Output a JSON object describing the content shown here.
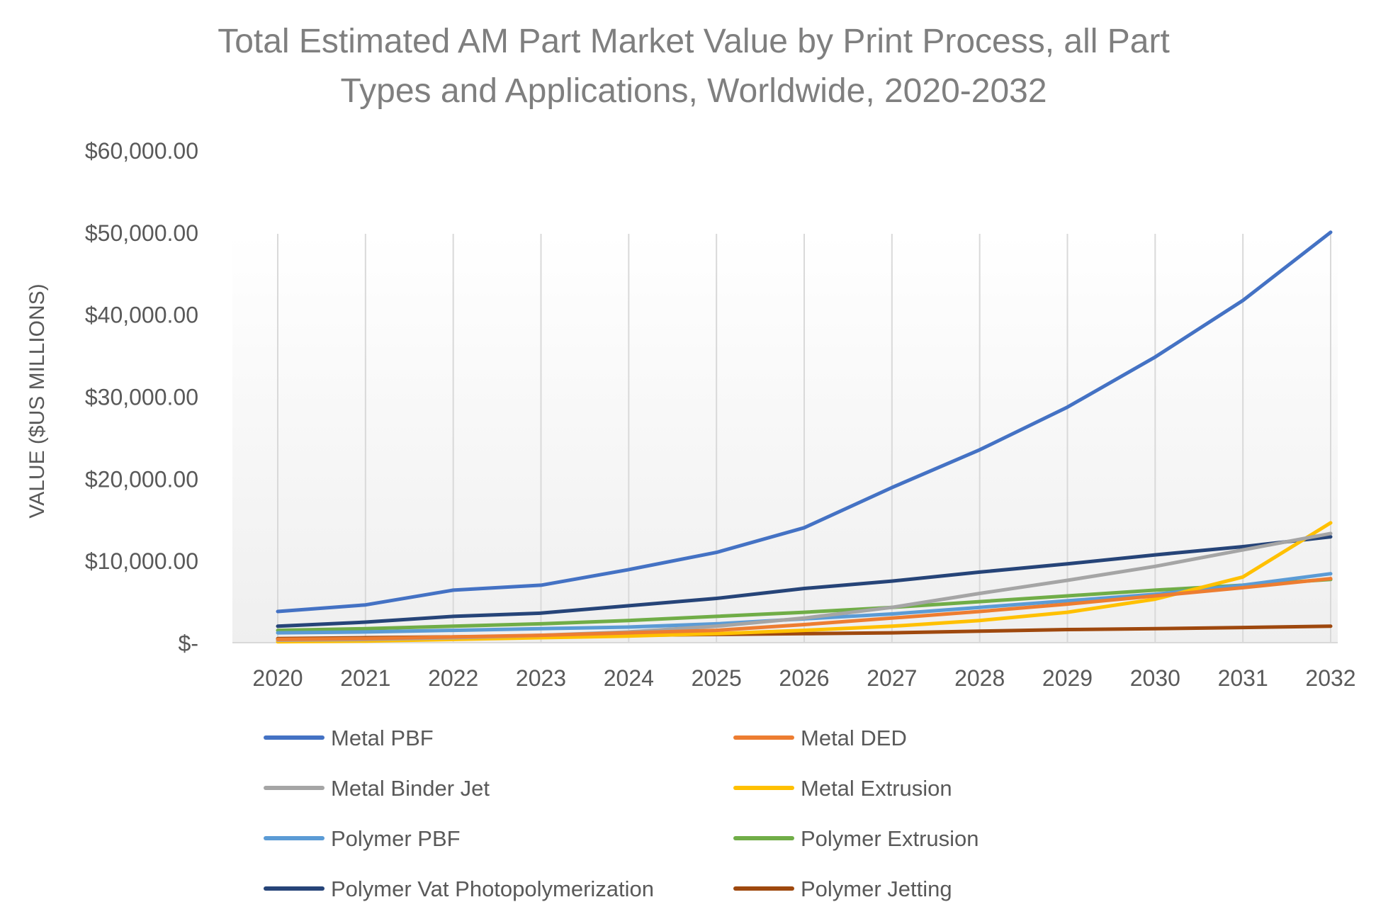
{
  "chart_data": {
    "type": "line",
    "title_lines": [
      "Total Estimated AM Part Market Value by Print Process, all Part",
      "Types and Applications, Worldwide, 2020-2032"
    ],
    "xlabel": "",
    "ylabel": "VALUE ($US MILLIONS)",
    "ylim": [
      0,
      60000
    ],
    "y_ticks": [
      {
        "value": 0,
        "label": "$-"
      },
      {
        "value": 10000,
        "label": "$10,000.00"
      },
      {
        "value": 20000,
        "label": "$20,000.00"
      },
      {
        "value": 30000,
        "label": "$30,000.00"
      },
      {
        "value": 40000,
        "label": "$40,000.00"
      },
      {
        "value": 50000,
        "label": "$50,000.00"
      },
      {
        "value": 60000,
        "label": "$60,000.00"
      }
    ],
    "x": [
      "2020",
      "2021",
      "2022",
      "2023",
      "2024",
      "2025",
      "2026",
      "2027",
      "2028",
      "2029",
      "2030",
      "2031",
      "2032"
    ],
    "grid": "vertical lines at categories",
    "legend_position": "bottom, two columns",
    "series": [
      {
        "name": "Metal PBF",
        "color": "#4472C4",
        "values": [
          3800,
          4600,
          6400,
          7000,
          8900,
          11000,
          14000,
          18900,
          23500,
          28700,
          34800,
          41700,
          50000
        ]
      },
      {
        "name": "Metal DED",
        "color": "#ED7D31",
        "values": [
          400,
          500,
          700,
          900,
          1200,
          1500,
          2200,
          3000,
          3800,
          4700,
          5700,
          6700,
          7800
        ]
      },
      {
        "name": "Metal Binder Jet",
        "color": "#A5A5A5",
        "values": [
          300,
          400,
          600,
          900,
          1300,
          2000,
          3000,
          4300,
          6000,
          7600,
          9300,
          11300,
          13300
        ]
      },
      {
        "name": "Metal Extrusion",
        "color": "#FFC000",
        "values": [
          100,
          200,
          400,
          600,
          800,
          1100,
          1500,
          2000,
          2700,
          3700,
          5300,
          8000,
          14600
        ]
      },
      {
        "name": "Polymer PBF",
        "color": "#5B9BD5",
        "values": [
          1200,
          1300,
          1500,
          1700,
          1900,
          2300,
          2900,
          3500,
          4300,
          5100,
          5900,
          7000,
          8400
        ]
      },
      {
        "name": "Polymer Extrusion",
        "color": "#70AD47",
        "values": [
          1500,
          1700,
          2000,
          2300,
          2700,
          3200,
          3700,
          4300,
          5000,
          5700,
          6400,
          7000,
          7700
        ]
      },
      {
        "name": "Polymer Vat Photopolymerization",
        "color": "#264478",
        "values": [
          2000,
          2500,
          3200,
          3600,
          4500,
          5400,
          6600,
          7500,
          8600,
          9600,
          10700,
          11700,
          12900
        ]
      },
      {
        "name": "Polymer Jetting",
        "color": "#9E480E",
        "values": [
          500,
          600,
          700,
          800,
          900,
          1000,
          1100,
          1200,
          1400,
          1600,
          1700,
          1850,
          2000
        ]
      }
    ]
  }
}
